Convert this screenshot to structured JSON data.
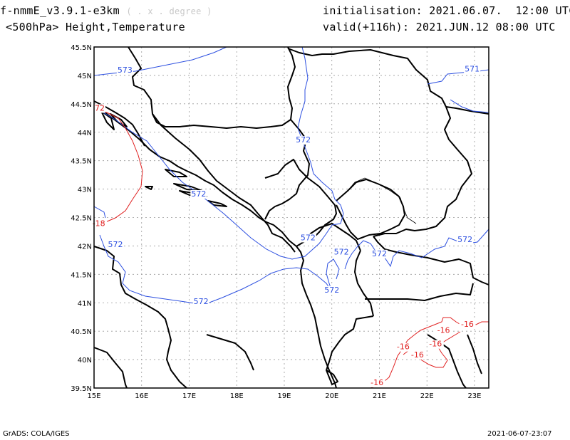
{
  "header": {
    "model": "f-nmmE_v3.9.1-e3km",
    "units": "( . x . degree )",
    "level_title": "<500hPa> Height,Temperature",
    "init": "initialisation: 2021.06.07.  12:00 UTC",
    "valid": "valid(+116h): 2021.JUN.12 08:00 UTC"
  },
  "footer": {
    "left": "GrADS: COLA/IGES",
    "right": "2021-06-07-23:07"
  },
  "axes": {
    "lon_labels": [
      "15E",
      "16E",
      "17E",
      "18E",
      "19E",
      "20E",
      "21E",
      "22E",
      "23E"
    ],
    "lat_labels": [
      "45.5N",
      "45N",
      "44.5N",
      "44N",
      "43.5N",
      "43N",
      "42.5N",
      "42N",
      "41.5N",
      "41N",
      "40.5N",
      "40N",
      "39.5N"
    ],
    "lon_range": [
      15,
      23.3
    ],
    "lat_range": [
      39.5,
      45.5
    ]
  },
  "contours": {
    "height_color": "#2c4fe0",
    "temp_color": "#e02020",
    "height_labels": [
      {
        "text": "573",
        "lon": 15.65,
        "lat": 45.05
      },
      {
        "text": "571",
        "lon": 22.95,
        "lat": 45.07
      },
      {
        "text": "572",
        "lon": 19.4,
        "lat": 43.82
      },
      {
        "text": "572",
        "lon": 17.2,
        "lat": 42.87
      },
      {
        "text": "572",
        "lon": 15.45,
        "lat": 41.98
      },
      {
        "text": "572",
        "lon": 19.5,
        "lat": 42.1
      },
      {
        "text": "572",
        "lon": 20.2,
        "lat": 41.85
      },
      {
        "text": "572",
        "lon": 21.0,
        "lat": 41.82
      },
      {
        "text": "572",
        "lon": 22.8,
        "lat": 42.07
      },
      {
        "text": "572",
        "lon": 20.0,
        "lat": 41.18
      },
      {
        "text": "572",
        "lon": 17.25,
        "lat": 40.98
      }
    ],
    "temp_labels": [
      {
        "text": "-18",
        "lon": 15.1,
        "lat": 42.35
      },
      {
        "text": "72",
        "lon": 15.12,
        "lat": 44.38
      },
      {
        "text": "-16",
        "lon": 20.95,
        "lat": 39.55
      },
      {
        "text": "-16",
        "lon": 21.5,
        "lat": 40.18
      },
      {
        "text": "-16",
        "lon": 21.8,
        "lat": 40.04
      },
      {
        "text": "-16",
        "lon": 22.18,
        "lat": 40.23
      },
      {
        "text": "-16",
        "lon": 22.35,
        "lat": 40.47
      },
      {
        "text": "-16",
        "lon": 22.85,
        "lat": 40.58
      }
    ]
  }
}
